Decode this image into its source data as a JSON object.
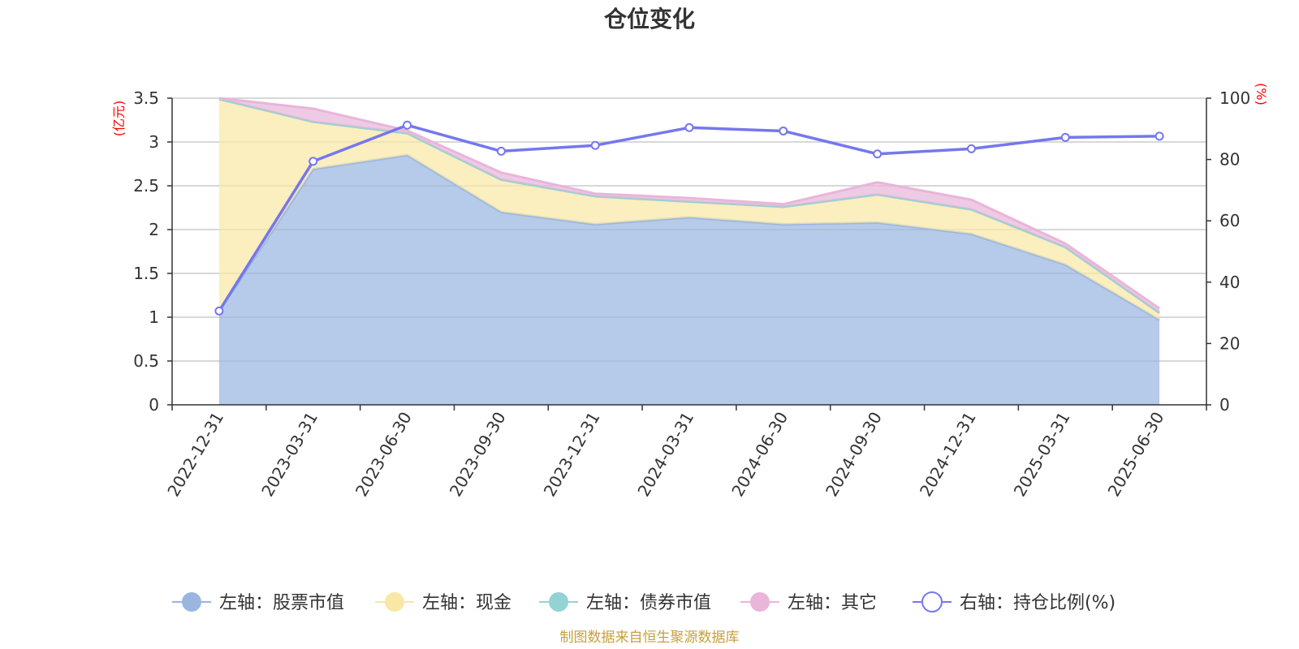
{
  "chart_data": {
    "type": "area",
    "title": "仓位变化",
    "categories": [
      "2022-12-31",
      "2023-03-31",
      "2023-06-30",
      "2023-09-30",
      "2023-12-31",
      "2024-03-31",
      "2024-06-30",
      "2024-09-30",
      "2024-12-31",
      "2025-03-31",
      "2025-06-30"
    ],
    "left_axis": {
      "unit": "(亿元)",
      "ylim": [
        0,
        3.5
      ],
      "ticks": [
        "0",
        "0.5",
        "1",
        "1.5",
        "2",
        "2.5",
        "3",
        "3.5"
      ]
    },
    "right_axis": {
      "unit": "(%)",
      "ylim": [
        0,
        100
      ],
      "ticks": [
        "0",
        "20",
        "40",
        "60",
        "80",
        "100"
      ]
    },
    "stacked": true,
    "grid": true,
    "series": [
      {
        "name": "左轴：股票市值",
        "axis": "left",
        "type": "area",
        "color": "#9ab6e0",
        "values": [
          1.07,
          2.69,
          2.85,
          2.2,
          2.06,
          2.14,
          2.06,
          2.08,
          1.95,
          1.6,
          0.97
        ]
      },
      {
        "name": "左轴：现金",
        "axis": "left",
        "type": "area",
        "color": "#f9e7a6",
        "values": [
          2.42,
          0.54,
          0.25,
          0.37,
          0.32,
          0.18,
          0.2,
          0.32,
          0.28,
          0.2,
          0.08
        ]
      },
      {
        "name": "左轴：债券市值",
        "axis": "left",
        "type": "area",
        "color": "#93d3d4",
        "values": [
          0,
          0,
          0,
          0,
          0,
          0,
          0,
          0,
          0,
          0,
          0
        ]
      },
      {
        "name": "左轴：其它",
        "axis": "left",
        "type": "area",
        "color": "#e9b5d9",
        "values": [
          0.01,
          0.15,
          0.03,
          0.08,
          0.03,
          0.04,
          0.03,
          0.14,
          0.11,
          0.04,
          0.05
        ]
      },
      {
        "name": "右轴：持仓比例(%)",
        "axis": "right",
        "type": "line",
        "color": "#7577ee",
        "values": [
          30.6,
          79.4,
          91.2,
          82.7,
          84.6,
          90.4,
          89.3,
          81.8,
          83.5,
          87.2,
          87.6
        ]
      }
    ],
    "legend_position": "bottom-center"
  },
  "footer": {
    "source": "制图数据来自恒生聚源数据库"
  }
}
